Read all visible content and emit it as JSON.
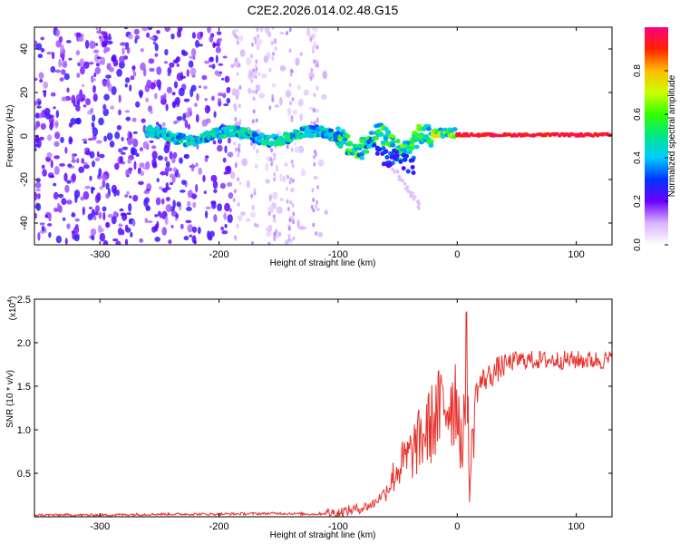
{
  "title": "C2E2.2026.014.02.48.G15",
  "colors": {
    "snr_line": "#e8302a",
    "axis": "#000000"
  },
  "chart_data": [
    {
      "type": "heatmap",
      "name": "spectrogram",
      "xlabel": "Height of straight line (km)",
      "ylabel": "Frequency (Hz)",
      "xlim": [
        -355,
        130
      ],
      "ylim": [
        -50,
        50
      ],
      "x_ticks": [
        -300,
        -200,
        -100,
        0,
        100
      ],
      "y_ticks": [
        -40,
        -20,
        0,
        20,
        40
      ],
      "colorbar": {
        "label": "Normalized spectral amplitude",
        "range": [
          0,
          1
        ],
        "ticks": [
          0.0,
          0.2,
          0.4,
          0.6,
          0.8
        ]
      },
      "regions": [
        {
          "desc": "noise",
          "x_range": [
            -355,
            -190
          ],
          "amplitude": 0.08
        },
        {
          "desc": "signal band",
          "x_range": [
            -260,
            130
          ],
          "freq_center": 0,
          "amplitude_range": [
            0.2,
            0.95
          ]
        }
      ]
    },
    {
      "type": "line",
      "name": "snr",
      "xlabel": "Height of straight line (km)",
      "ylabel": "SNR (10 * v/v)",
      "multiplier_label": "(x10",
      "multiplier_exp": "4",
      "xlim": [
        -355,
        130
      ],
      "ylim": [
        0,
        2.5
      ],
      "x_ticks": [
        -300,
        -200,
        -100,
        0,
        100
      ],
      "y_ticks": [
        0.5,
        1.0,
        1.5,
        2.0,
        2.5
      ],
      "series": [
        {
          "name": "SNR",
          "x": [
            -355,
            -300,
            -250,
            -200,
            -150,
            -120,
            -100,
            -80,
            -70,
            -60,
            -50,
            -40,
            -30,
            -20,
            -10,
            0,
            5,
            8,
            10,
            15,
            20,
            30,
            40,
            50,
            70,
            100,
            130
          ],
          "y": [
            0.02,
            0.02,
            0.03,
            0.03,
            0.04,
            0.03,
            0.05,
            0.1,
            0.15,
            0.3,
            0.55,
            0.7,
            0.9,
            1.1,
            1.3,
            1.4,
            0.6,
            2.5,
            0.2,
            1.4,
            1.55,
            1.65,
            1.75,
            1.8,
            1.8,
            1.8,
            1.8
          ]
        }
      ]
    }
  ]
}
